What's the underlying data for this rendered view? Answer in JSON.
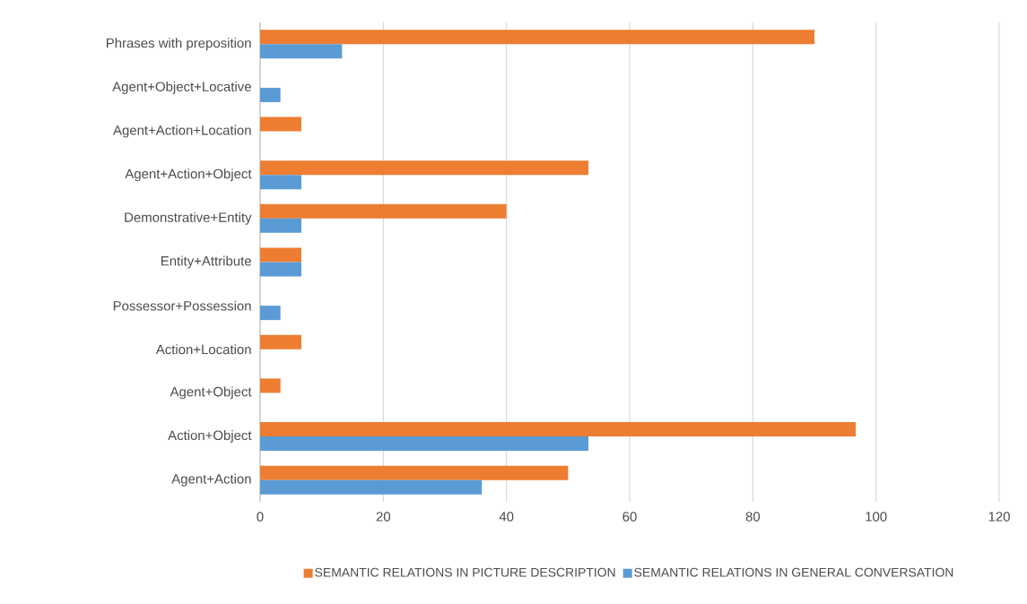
{
  "chart_data": {
    "type": "bar",
    "orientation": "horizontal",
    "categories": [
      "Phrases with preposition",
      "Agent+Object+Locative",
      "Agent+Action+Location",
      "Agent+Action+Object",
      "Demonstrative+Entity",
      "Entity+Attribute",
      "Possessor+Possession",
      "Action+Location",
      "Agent+Object",
      "Action+Object",
      "Agent+Action"
    ],
    "series": [
      {
        "name": "SEMANTIC RELATIONS IN PICTURE DESCRIPTION",
        "color": "#ed7d31",
        "values": [
          90,
          null,
          6.7,
          53.3,
          40,
          6.7,
          null,
          6.7,
          3.3,
          96.7,
          50
        ]
      },
      {
        "name": "SEMANTIC RELATIONS IN GENERAL CONVERSATION",
        "color": "#5b9bd5",
        "values": [
          13.3,
          3.3,
          null,
          6.7,
          6.7,
          6.7,
          3.3,
          null,
          null,
          53.3,
          36
        ]
      }
    ],
    "xlim": [
      0,
      120
    ],
    "xticks": [
      0,
      20,
      40,
      60,
      80,
      100,
      120
    ],
    "grid": "x",
    "legend": "bottom"
  }
}
